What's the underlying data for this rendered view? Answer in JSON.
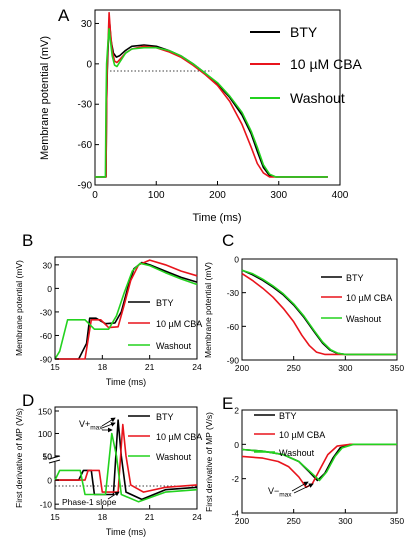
{
  "colors": {
    "BTY": "#000000",
    "CBA": "#e8141c",
    "Washout": "#23d21f"
  },
  "chart_data": [
    {
      "panel": "A",
      "type": "line",
      "xlabel": "Time (ms)",
      "ylabel": "Membrane potential (mV)",
      "xlim": [
        0,
        400
      ],
      "ylim": [
        -90,
        40
      ],
      "xticks": [
        "0",
        "100",
        "200",
        "300",
        "400"
      ],
      "yticks": [
        "-90",
        "-60",
        "-30",
        "0",
        "30"
      ],
      "legend": [
        "BTY",
        "10 µM CBA",
        "Washout"
      ],
      "series": [
        {
          "name": "BTY",
          "color": "#000000",
          "points": [
            [
              0,
              -84
            ],
            [
              18,
              -84
            ],
            [
              19,
              -30
            ],
            [
              20,
              -5
            ],
            [
              22,
              20
            ],
            [
              24,
              30
            ],
            [
              26,
              18
            ],
            [
              30,
              8
            ],
            [
              35,
              5
            ],
            [
              40,
              6
            ],
            [
              50,
              10
            ],
            [
              60,
              13
            ],
            [
              80,
              14
            ],
            [
              100,
              13
            ],
            [
              120,
              10
            ],
            [
              140,
              6
            ],
            [
              160,
              0
            ],
            [
              180,
              -7
            ],
            [
              200,
              -15
            ],
            [
              220,
              -25
            ],
            [
              240,
              -38
            ],
            [
              255,
              -52
            ],
            [
              265,
              -65
            ],
            [
              275,
              -77
            ],
            [
              285,
              -83
            ],
            [
              295,
              -84
            ],
            [
              380,
              -84
            ]
          ]
        },
        {
          "name": "10 µM CBA",
          "color": "#e8141c",
          "points": [
            [
              0,
              -84
            ],
            [
              18,
              -84
            ],
            [
              19,
              -30
            ],
            [
              20,
              0
            ],
            [
              22,
              25
            ],
            [
              23,
              38
            ],
            [
              25,
              25
            ],
            [
              28,
              10
            ],
            [
              32,
              2
            ],
            [
              36,
              1
            ],
            [
              40,
              3
            ],
            [
              50,
              8
            ],
            [
              60,
              11
            ],
            [
              80,
              13
            ],
            [
              100,
              12
            ],
            [
              120,
              9
            ],
            [
              140,
              5
            ],
            [
              160,
              -1
            ],
            [
              180,
              -8
            ],
            [
              200,
              -16
            ],
            [
              220,
              -28
            ],
            [
              240,
              -45
            ],
            [
              255,
              -62
            ],
            [
              265,
              -74
            ],
            [
              275,
              -81
            ],
            [
              285,
              -84
            ],
            [
              380,
              -84
            ]
          ]
        },
        {
          "name": "Washout",
          "color": "#23d21f",
          "points": [
            [
              0,
              -84
            ],
            [
              17,
              -84
            ],
            [
              18,
              -30
            ],
            [
              19,
              0
            ],
            [
              21,
              15
            ],
            [
              23,
              26
            ],
            [
              25,
              18
            ],
            [
              28,
              6
            ],
            [
              32,
              -1
            ],
            [
              36,
              -2
            ],
            [
              40,
              1
            ],
            [
              50,
              8
            ],
            [
              60,
              11
            ],
            [
              80,
              12
            ],
            [
              100,
              12
            ],
            [
              120,
              10
            ],
            [
              140,
              6
            ],
            [
              160,
              0
            ],
            [
              180,
              -7
            ],
            [
              200,
              -14
            ],
            [
              220,
              -24
            ],
            [
              240,
              -36
            ],
            [
              255,
              -50
            ],
            [
              265,
              -62
            ],
            [
              275,
              -75
            ],
            [
              285,
              -82
            ],
            [
              295,
              -84
            ],
            [
              380,
              -84
            ]
          ]
        }
      ]
    },
    {
      "panel": "B",
      "type": "line",
      "xlabel": "Time (ms)",
      "ylabel": "Membrane potential (mV)",
      "xlim": [
        15,
        24
      ],
      "ylim": [
        -90,
        40
      ],
      "xticks": [
        "15",
        "18",
        "21",
        "24"
      ],
      "yticks": [
        "-90",
        "-60",
        "-30",
        "0",
        "30"
      ],
      "legend": [
        "BTY",
        "10 µM CBA",
        "Washout"
      ],
      "series": [
        {
          "name": "BTY",
          "color": "#000000",
          "points": [
            [
              15,
              -90
            ],
            [
              16.5,
              -90
            ],
            [
              17,
              -70
            ],
            [
              17.2,
              -38
            ],
            [
              17.6,
              -38
            ],
            [
              18.2,
              -45
            ],
            [
              18.8,
              -44
            ],
            [
              19.2,
              -30
            ],
            [
              19.6,
              0
            ],
            [
              20,
              25
            ],
            [
              20.5,
              33
            ],
            [
              21,
              30
            ],
            [
              22,
              22
            ],
            [
              23,
              14
            ],
            [
              24,
              8
            ]
          ]
        },
        {
          "name": "10 µM CBA",
          "color": "#e8141c",
          "points": [
            [
              15,
              -90
            ],
            [
              16.9,
              -90
            ],
            [
              17.3,
              -40
            ],
            [
              17.9,
              -40
            ],
            [
              18.4,
              -50
            ],
            [
              19,
              -49
            ],
            [
              19.4,
              -20
            ],
            [
              19.8,
              10
            ],
            [
              20.3,
              30
            ],
            [
              21,
              36
            ],
            [
              22,
              30
            ],
            [
              23,
              22
            ],
            [
              24,
              16
            ]
          ]
        },
        {
          "name": "Washout",
          "color": "#23d21f",
          "points": [
            [
              15,
              -90
            ],
            [
              15.3,
              -80
            ],
            [
              15.8,
              -40
            ],
            [
              16.9,
              -40
            ],
            [
              17.5,
              -52
            ],
            [
              18.4,
              -52
            ],
            [
              18.9,
              -35
            ],
            [
              19.4,
              -5
            ],
            [
              19.9,
              22
            ],
            [
              20.4,
              32
            ],
            [
              21,
              29
            ],
            [
              22,
              20
            ],
            [
              23,
              12
            ],
            [
              24,
              5
            ]
          ]
        }
      ]
    },
    {
      "panel": "C",
      "type": "line",
      "xlabel": "",
      "ylabel": "Membrane potential (mV)",
      "xlim": [
        200,
        350
      ],
      "ylim": [
        -90,
        0
      ],
      "xticks": [
        "200",
        "250",
        "300",
        "350"
      ],
      "yticks": [
        "-90",
        "-60",
        "-30",
        "0"
      ],
      "legend": [
        "BTY",
        "10 µM CBA",
        "Washout"
      ],
      "series": [
        {
          "name": "BTY",
          "color": "#000000",
          "points": [
            [
              200,
              -10
            ],
            [
              210,
              -14
            ],
            [
              220,
              -19
            ],
            [
              230,
              -25
            ],
            [
              240,
              -32
            ],
            [
              250,
              -41
            ],
            [
              260,
              -52
            ],
            [
              270,
              -65
            ],
            [
              278,
              -75
            ],
            [
              285,
              -81
            ],
            [
              292,
              -84
            ],
            [
              300,
              -85
            ],
            [
              350,
              -85
            ]
          ]
        },
        {
          "name": "10 µM CBA",
          "color": "#e8141c",
          "points": [
            [
              200,
              -13
            ],
            [
              210,
              -19
            ],
            [
              220,
              -26
            ],
            [
              230,
              -34
            ],
            [
              240,
              -44
            ],
            [
              250,
              -56
            ],
            [
              258,
              -68
            ],
            [
              265,
              -77
            ],
            [
              272,
              -83
            ],
            [
              280,
              -85
            ],
            [
              350,
              -85
            ]
          ]
        },
        {
          "name": "Washout",
          "color": "#23d21f",
          "points": [
            [
              200,
              -10
            ],
            [
              210,
              -13
            ],
            [
              220,
              -18
            ],
            [
              230,
              -24
            ],
            [
              240,
              -31
            ],
            [
              250,
              -40
            ],
            [
              260,
              -51
            ],
            [
              270,
              -64
            ],
            [
              278,
              -74
            ],
            [
              286,
              -81
            ],
            [
              293,
              -84
            ],
            [
              300,
              -85
            ],
            [
              350,
              -85
            ]
          ]
        }
      ]
    },
    {
      "panel": "D",
      "type": "line",
      "xlabel": "Time (ms)",
      "ylabel": "First derivative of MP (V/s)",
      "xlim": [
        15,
        24
      ],
      "xticks": [
        "15",
        "18",
        "21",
        "24"
      ],
      "lower_yticks": [
        "-10",
        "0",
        "10"
      ],
      "upper_yticks": [
        "50",
        "100",
        "150"
      ],
      "axis_break": [
        10,
        50
      ],
      "legend": [
        "BTY",
        "10 µM CBA",
        "Washout"
      ],
      "annotations": [
        "V+max",
        "Phase-1 slope"
      ],
      "series": [
        {
          "name": "BTY",
          "color": "#000000",
          "points": [
            [
              15,
              0
            ],
            [
              16.5,
              0
            ],
            [
              16.8,
              4
            ],
            [
              17.3,
              4
            ],
            [
              17.5,
              -6
            ],
            [
              18.7,
              -6
            ],
            [
              19,
              130
            ],
            [
              19.2,
              40
            ],
            [
              19.5,
              -5
            ],
            [
              20.5,
              -8
            ],
            [
              22,
              -4
            ],
            [
              24,
              -3
            ]
          ]
        },
        {
          "name": "10 µM CBA",
          "color": "#e8141c",
          "points": [
            [
              15,
              0
            ],
            [
              16.9,
              0
            ],
            [
              17.1,
              4
            ],
            [
              17.8,
              4
            ],
            [
              18,
              -5
            ],
            [
              19,
              -5
            ],
            [
              19.3,
              120
            ],
            [
              19.5,
              30
            ],
            [
              19.8,
              -2
            ],
            [
              20.6,
              -5
            ],
            [
              22,
              -3
            ],
            [
              24,
              -2
            ]
          ]
        },
        {
          "name": "Washout",
          "color": "#23d21f",
          "points": [
            [
              15,
              0
            ],
            [
              15.3,
              4
            ],
            [
              16.6,
              4
            ],
            [
              16.9,
              -6
            ],
            [
              18.2,
              -6
            ],
            [
              18.6,
              100
            ],
            [
              18.9,
              20
            ],
            [
              19.2,
              -6
            ],
            [
              20.3,
              -9
            ],
            [
              22,
              -5
            ],
            [
              24,
              -4
            ]
          ]
        }
      ]
    },
    {
      "panel": "E",
      "type": "line",
      "xlabel": "",
      "ylabel": "First derivative of MP (V/s)",
      "xlim": [
        200,
        350
      ],
      "ylim": [
        -4,
        2
      ],
      "xticks": [
        "200",
        "250",
        "300",
        "350"
      ],
      "yticks": [
        "-4",
        "-2",
        "0",
        "2"
      ],
      "legend": [
        "BTY",
        "10 µM CBA",
        "Washout"
      ],
      "annotations": [
        "V−max"
      ],
      "series": [
        {
          "name": "BTY",
          "color": "#000000",
          "points": [
            [
              200,
              -0.3
            ],
            [
              220,
              -0.4
            ],
            [
              240,
              -0.6
            ],
            [
              255,
              -1.0
            ],
            [
              265,
              -1.6
            ],
            [
              273,
              -2.1
            ],
            [
              280,
              -1.7
            ],
            [
              288,
              -0.8
            ],
            [
              295,
              -0.2
            ],
            [
              305,
              0
            ],
            [
              350,
              0
            ]
          ]
        },
        {
          "name": "10 µM CBA",
          "color": "#e8141c",
          "points": [
            [
              200,
              -0.7
            ],
            [
              220,
              -0.8
            ],
            [
              235,
              -1.0
            ],
            [
              245,
              -1.3
            ],
            [
              255,
              -1.9
            ],
            [
              262,
              -2.5
            ],
            [
              268,
              -2.3
            ],
            [
              275,
              -1.5
            ],
            [
              283,
              -0.6
            ],
            [
              292,
              -0.1
            ],
            [
              305,
              0
            ],
            [
              350,
              0
            ]
          ]
        },
        {
          "name": "Washout",
          "color": "#23d21f",
          "points": [
            [
              200,
              -0.3
            ],
            [
              220,
              -0.4
            ],
            [
              240,
              -0.6
            ],
            [
              255,
              -1.0
            ],
            [
              266,
              -1.6
            ],
            [
              275,
              -2.1
            ],
            [
              282,
              -1.6
            ],
            [
              290,
              -0.7
            ],
            [
              297,
              -0.2
            ],
            [
              308,
              0
            ],
            [
              350,
              0
            ]
          ]
        }
      ]
    }
  ],
  "labels": {
    "panelA": "A",
    "panelB": "B",
    "panelC": "C",
    "panelD": "D",
    "panelE": "E",
    "vplus": "V+",
    "vplus_sub": "max",
    "vminus": "V−",
    "vminus_sub": "max",
    "phase1": "Phase-1 slope"
  }
}
